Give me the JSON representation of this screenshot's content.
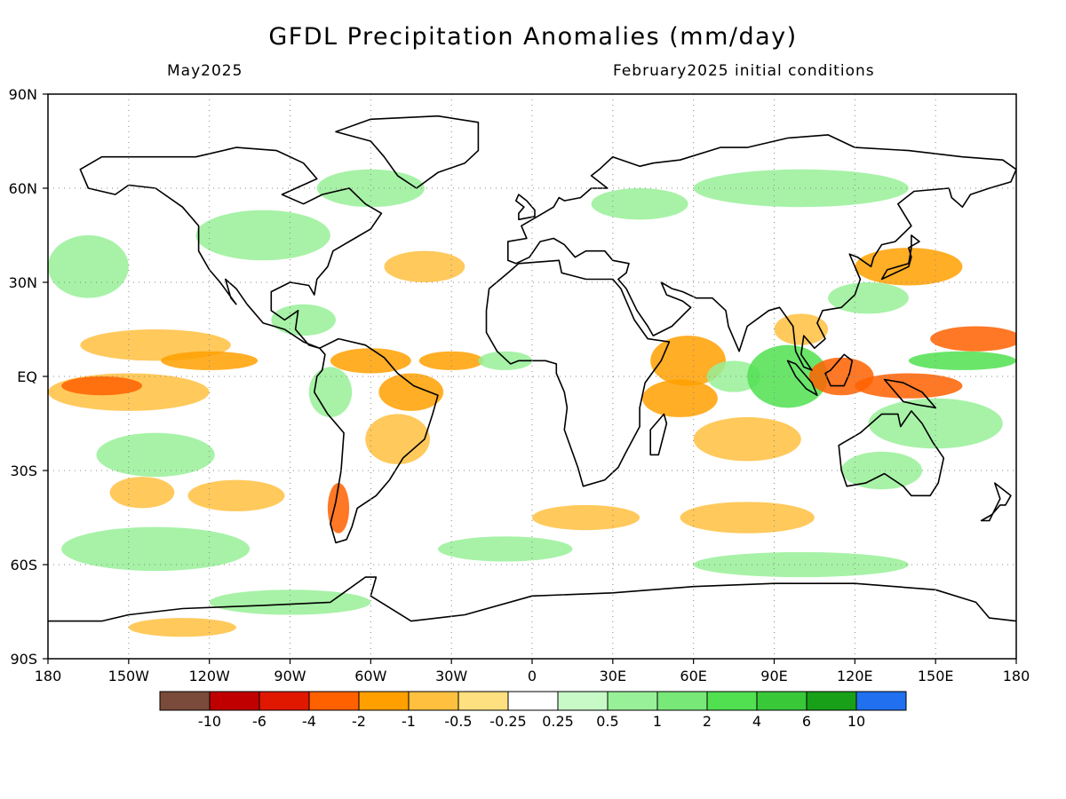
{
  "title": "GFDL Precipitation Anomalies (mm/day)",
  "subtitle_left": "May2025",
  "subtitle_right": "February2025 initial conditions",
  "map": {
    "lon_range": [
      -180,
      180
    ],
    "lat_range": [
      -90,
      90
    ],
    "x_ticks": [
      {
        "lon": -180,
        "label": "180"
      },
      {
        "lon": -150,
        "label": "150W"
      },
      {
        "lon": -120,
        "label": "120W"
      },
      {
        "lon": -90,
        "label": "90W"
      },
      {
        "lon": -60,
        "label": "60W"
      },
      {
        "lon": -30,
        "label": "30W"
      },
      {
        "lon": 0,
        "label": "0"
      },
      {
        "lon": 30,
        "label": "30E"
      },
      {
        "lon": 60,
        "label": "60E"
      },
      {
        "lon": 90,
        "label": "90E"
      },
      {
        "lon": 120,
        "label": "120E"
      },
      {
        "lon": 150,
        "label": "150E"
      },
      {
        "lon": 180,
        "label": "180"
      }
    ],
    "y_ticks": [
      {
        "lat": 90,
        "label": "90N"
      },
      {
        "lat": 60,
        "label": "60N"
      },
      {
        "lat": 30,
        "label": "30N"
      },
      {
        "lat": 0,
        "label": "EQ"
      },
      {
        "lat": -30,
        "label": "30S"
      },
      {
        "lat": -60,
        "label": "60S"
      },
      {
        "lat": -90,
        "label": "90S"
      }
    ],
    "gridlines": "dotted"
  },
  "colorbar": {
    "colors": [
      "#7a4a3a",
      "#c00000",
      "#e01800",
      "#ff6000",
      "#ffa000",
      "#ffc040",
      "#ffe080",
      "#ffffff",
      "#c8fac8",
      "#98f098",
      "#78e878",
      "#50e050",
      "#38c838",
      "#18a018",
      "#2070f0"
    ],
    "labels": [
      "-10",
      "-6",
      "-4",
      "-2",
      "-1",
      "-0.5",
      "-0.25",
      "0.25",
      "0.5",
      "1",
      "2",
      "4",
      "6",
      "10"
    ]
  },
  "anomaly_regions": [
    {
      "lon": -140,
      "lat": 10,
      "rx": 28,
      "ry": 5,
      "color": "#ffc040"
    },
    {
      "lon": -120,
      "lat": 5,
      "rx": 18,
      "ry": 3,
      "color": "#ffa000"
    },
    {
      "lon": -150,
      "lat": -5,
      "rx": 30,
      "ry": 6,
      "color": "#ffc040"
    },
    {
      "lon": -160,
      "lat": -3,
      "rx": 15,
      "ry": 3,
      "color": "#ff6000"
    },
    {
      "lon": -140,
      "lat": -25,
      "rx": 22,
      "ry": 7,
      "color": "#98f098"
    },
    {
      "lon": -165,
      "lat": 35,
      "rx": 15,
      "ry": 10,
      "color": "#98f098"
    },
    {
      "lon": -145,
      "lat": -37,
      "rx": 12,
      "ry": 5,
      "color": "#ffc040"
    },
    {
      "lon": -110,
      "lat": -38,
      "rx": 18,
      "ry": 5,
      "color": "#ffc040"
    },
    {
      "lon": -140,
      "lat": -55,
      "rx": 35,
      "ry": 7,
      "color": "#98f098"
    },
    {
      "lon": -60,
      "lat": 5,
      "rx": 15,
      "ry": 4,
      "color": "#ffa000"
    },
    {
      "lon": -45,
      "lat": -5,
      "rx": 12,
      "ry": 6,
      "color": "#ffa000"
    },
    {
      "lon": -75,
      "lat": -5,
      "rx": 8,
      "ry": 8,
      "color": "#98f098"
    },
    {
      "lon": -50,
      "lat": -20,
      "rx": 12,
      "ry": 8,
      "color": "#ffc040"
    },
    {
      "lon": -72,
      "lat": -42,
      "rx": 4,
      "ry": 8,
      "color": "#ff6000"
    },
    {
      "lon": -85,
      "lat": 18,
      "rx": 12,
      "ry": 5,
      "color": "#98f098"
    },
    {
      "lon": -30,
      "lat": 5,
      "rx": 12,
      "ry": 3,
      "color": "#ffa000"
    },
    {
      "lon": -10,
      "lat": 5,
      "rx": 10,
      "ry": 3,
      "color": "#98f098"
    },
    {
      "lon": -40,
      "lat": 35,
      "rx": 15,
      "ry": 5,
      "color": "#ffc040"
    },
    {
      "lon": -100,
      "lat": 45,
      "rx": 25,
      "ry": 8,
      "color": "#98f098"
    },
    {
      "lon": -60,
      "lat": 60,
      "rx": 20,
      "ry": 6,
      "color": "#98f098"
    },
    {
      "lon": 58,
      "lat": 5,
      "rx": 14,
      "ry": 8,
      "color": "#ffa000"
    },
    {
      "lon": 55,
      "lat": -7,
      "rx": 14,
      "ry": 6,
      "color": "#ffa000"
    },
    {
      "lon": 75,
      "lat": 0,
      "rx": 10,
      "ry": 5,
      "color": "#98f098"
    },
    {
      "lon": 95,
      "lat": 0,
      "rx": 15,
      "ry": 10,
      "color": "#50e050"
    },
    {
      "lon": 80,
      "lat": -20,
      "rx": 20,
      "ry": 7,
      "color": "#ffc040"
    },
    {
      "lon": 115,
      "lat": 0,
      "rx": 12,
      "ry": 6,
      "color": "#ff6000"
    },
    {
      "lon": 140,
      "lat": -3,
      "rx": 20,
      "ry": 4,
      "color": "#ff6000"
    },
    {
      "lon": 165,
      "lat": 12,
      "rx": 17,
      "ry": 4,
      "color": "#ff6000"
    },
    {
      "lon": 160,
      "lat": 5,
      "rx": 20,
      "ry": 3,
      "color": "#50e050"
    },
    {
      "lon": 150,
      "lat": -15,
      "rx": 25,
      "ry": 8,
      "color": "#98f098"
    },
    {
      "lon": 140,
      "lat": 35,
      "rx": 20,
      "ry": 6,
      "color": "#ffa000"
    },
    {
      "lon": 125,
      "lat": 25,
      "rx": 15,
      "ry": 5,
      "color": "#98f098"
    },
    {
      "lon": 100,
      "lat": 15,
      "rx": 10,
      "ry": 5,
      "color": "#ffc040"
    },
    {
      "lon": 100,
      "lat": 60,
      "rx": 40,
      "ry": 6,
      "color": "#98f098"
    },
    {
      "lon": 40,
      "lat": 55,
      "rx": 18,
      "ry": 5,
      "color": "#98f098"
    },
    {
      "lon": 130,
      "lat": -30,
      "rx": 15,
      "ry": 6,
      "color": "#98f098"
    },
    {
      "lon": 80,
      "lat": -45,
      "rx": 25,
      "ry": 5,
      "color": "#ffc040"
    },
    {
      "lon": 20,
      "lat": -45,
      "rx": 20,
      "ry": 4,
      "color": "#ffc040"
    },
    {
      "lon": -10,
      "lat": -55,
      "rx": 25,
      "ry": 4,
      "color": "#98f098"
    },
    {
      "lon": 100,
      "lat": -60,
      "rx": 40,
      "ry": 4,
      "color": "#98f098"
    },
    {
      "lon": -130,
      "lat": -80,
      "rx": 20,
      "ry": 3,
      "color": "#ffc040"
    },
    {
      "lon": -90,
      "lat": -72,
      "rx": 30,
      "ry": 4,
      "color": "#98f098"
    }
  ]
}
